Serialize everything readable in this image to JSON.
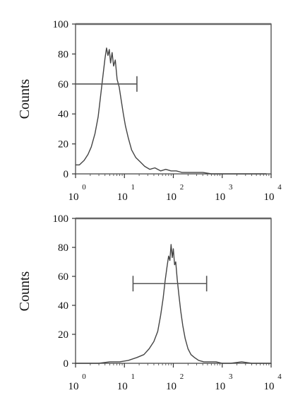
{
  "chart_data": [
    {
      "type": "line",
      "subtype": "flow-cytometry-histogram",
      "ylabel": "Counts",
      "xlabel": "",
      "xscale": "log",
      "xlim": [
        1,
        10000
      ],
      "ylim": [
        0,
        100
      ],
      "yticks": [
        {
          "value": 0,
          "label": "0"
        },
        {
          "value": 20,
          "label": "20"
        },
        {
          "value": 40,
          "label": "40"
        },
        {
          "value": 60,
          "label": "60"
        },
        {
          "value": 80,
          "label": "80"
        },
        {
          "value": 100,
          "label": "100"
        }
      ],
      "xticks": [
        {
          "value": 1,
          "base": "10",
          "exp": "0"
        },
        {
          "value": 10,
          "base": "10",
          "exp": "1"
        },
        {
          "value": 100,
          "base": "10",
          "exp": "2"
        },
        {
          "value": 1000,
          "base": "10",
          "exp": "3"
        },
        {
          "value": 10000,
          "base": "10",
          "exp": "4"
        }
      ],
      "grid": false,
      "gate": {
        "x_start": 1,
        "x_end": 18,
        "y": 60
      },
      "series": [
        {
          "color": "#444444",
          "x": [
            1,
            1.2,
            1.5,
            1.8,
            2.1,
            2.5,
            2.9,
            3.2,
            3.5,
            3.8,
            4.0,
            4.3,
            4.6,
            4.9,
            5.2,
            5.6,
            6.0,
            6.5,
            7.1,
            7.8,
            8.5,
            9.5,
            10.5,
            12,
            14,
            17,
            21,
            26,
            33,
            42,
            55,
            70,
            90,
            115,
            150,
            200,
            280,
            400,
            600,
            900,
            1400,
            2200,
            3500,
            5500,
            8000
          ],
          "y": [
            6,
            6,
            9,
            13,
            18,
            27,
            38,
            50,
            61,
            71,
            77,
            84,
            79,
            83,
            74,
            81,
            72,
            76,
            63,
            58,
            50,
            40,
            32,
            24,
            16,
            11,
            8,
            5,
            3,
            4,
            2,
            3,
            2,
            2,
            1,
            1,
            1,
            1,
            0,
            0,
            0,
            0,
            0,
            0,
            0
          ]
        }
      ]
    },
    {
      "type": "line",
      "subtype": "flow-cytometry-histogram",
      "ylabel": "Counts",
      "xlabel": "",
      "xscale": "log",
      "xlim": [
        1,
        10000
      ],
      "ylim": [
        0,
        100
      ],
      "yticks": [
        {
          "value": 0,
          "label": "0"
        },
        {
          "value": 20,
          "label": "20"
        },
        {
          "value": 40,
          "label": "40"
        },
        {
          "value": 60,
          "label": "60"
        },
        {
          "value": 80,
          "label": "80"
        },
        {
          "value": 100,
          "label": "100"
        }
      ],
      "xticks": [
        {
          "value": 1,
          "base": "10",
          "exp": "0"
        },
        {
          "value": 10,
          "base": "10",
          "exp": "1"
        },
        {
          "value": 100,
          "base": "10",
          "exp": "2"
        },
        {
          "value": 1000,
          "base": "10",
          "exp": "3"
        },
        {
          "value": 10000,
          "base": "10",
          "exp": "4"
        }
      ],
      "grid": false,
      "gate": {
        "x_start": 15,
        "x_end": 480,
        "y": 55
      },
      "series": [
        {
          "color": "#444444",
          "x": [
            1,
            2,
            3,
            5,
            8,
            12,
            18,
            25,
            32,
            40,
            48,
            55,
            62,
            68,
            74,
            80,
            85,
            90,
            95,
            100,
            106,
            112,
            120,
            130,
            142,
            156,
            175,
            200,
            230,
            270,
            330,
            420,
            550,
            750,
            1000,
            1500,
            2500,
            4000,
            6500,
            10000
          ],
          "y": [
            0,
            0,
            0,
            1,
            1,
            2,
            4,
            6,
            10,
            15,
            22,
            33,
            45,
            57,
            66,
            74,
            71,
            82,
            73,
            79,
            68,
            70,
            58,
            47,
            36,
            26,
            17,
            10,
            6,
            4,
            2,
            1,
            1,
            1,
            0,
            0,
            1,
            0,
            0,
            0
          ]
        }
      ]
    }
  ]
}
